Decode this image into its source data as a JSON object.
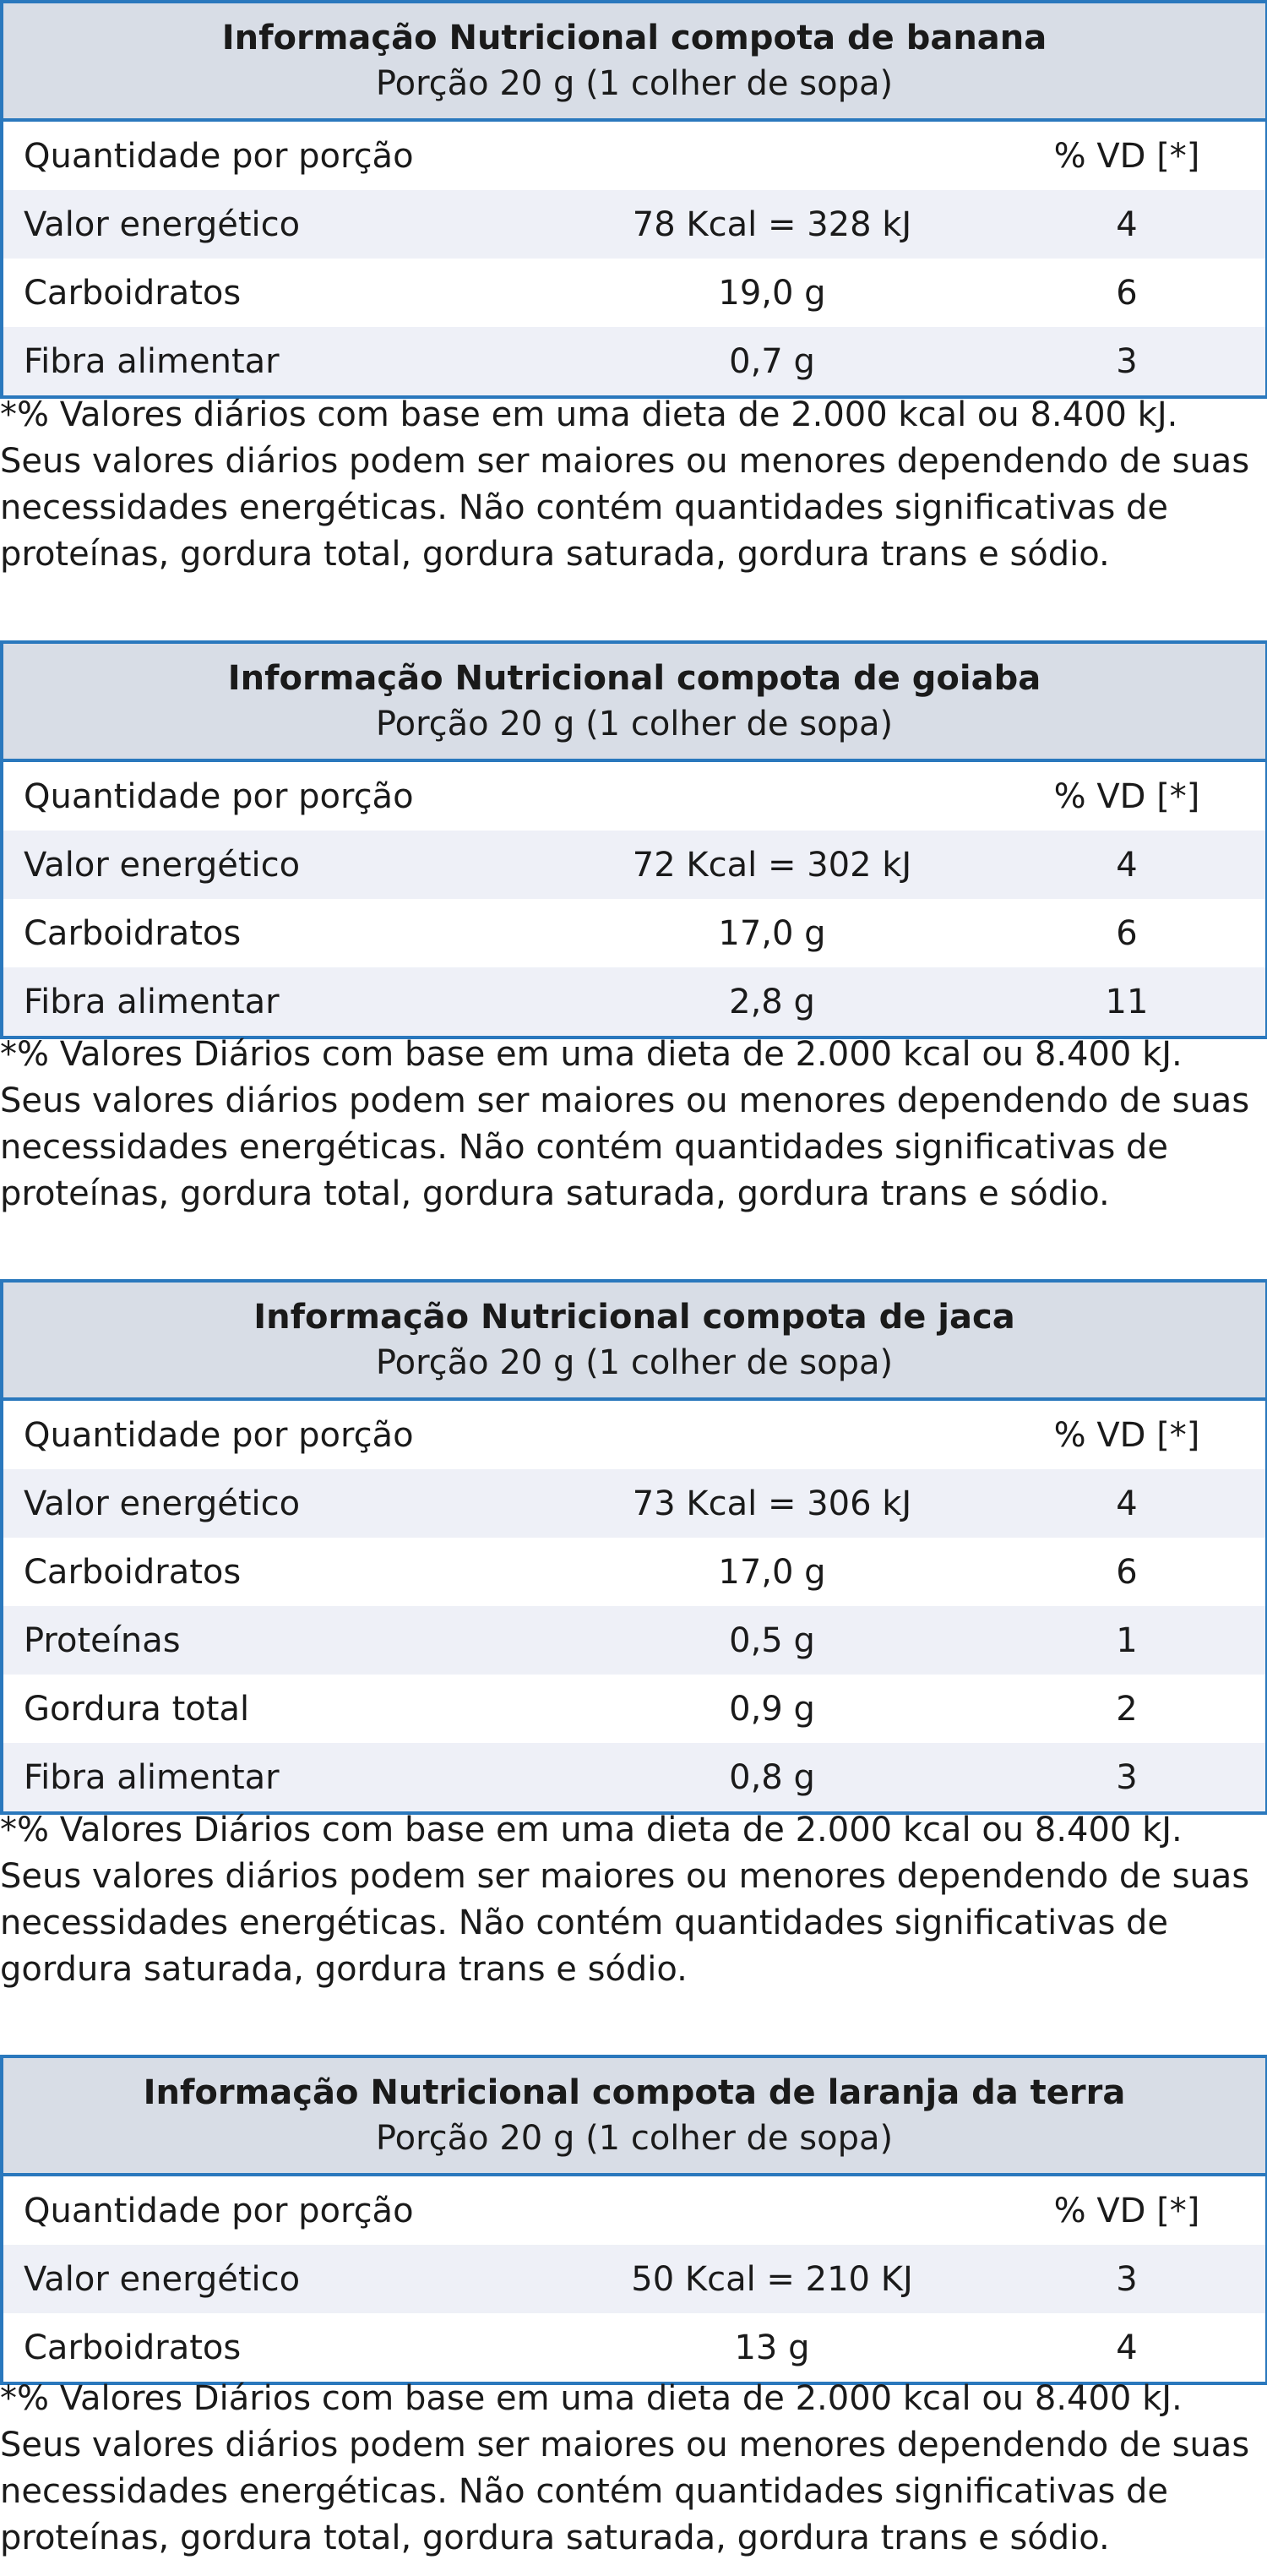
{
  "tables": [
    {
      "title": "Informação Nutricional compota de banana",
      "portion": "Porção 20 g (1 colher de sopa)",
      "header": {
        "name": "Quantidade por porção",
        "amount": "",
        "vd": "% VD [*]"
      },
      "rows": [
        {
          "name": "Valor energético",
          "amount": "78 Kcal = 328 kJ",
          "vd": "4"
        },
        {
          "name": "Carboidratos",
          "amount": "19,0 g",
          "vd": "6"
        },
        {
          "name": "Fibra alimentar",
          "amount": "0,7 g",
          "vd": "3"
        }
      ],
      "footnote": [
        "*% Valores diários com base em uma dieta de 2.000 kcal ou 8.400 kJ.",
        "Seus valores diários podem ser maiores ou menores dependendo de suas",
        "necessidades energéticas. Não contém quantidades significativas de",
        "proteínas, gordura total, gordura saturada, gordura trans e sódio."
      ]
    },
    {
      "title": "Informação Nutricional compota de goiaba",
      "portion": "Porção 20 g (1 colher de sopa)",
      "header": {
        "name": "Quantidade por porção",
        "amount": "",
        "vd": "% VD [*]"
      },
      "rows": [
        {
          "name": "Valor energético",
          "amount": "72 Kcal = 302 kJ",
          "vd": "4"
        },
        {
          "name": "Carboidratos",
          "amount": "17,0 g",
          "vd": "6"
        },
        {
          "name": "Fibra alimentar",
          "amount": "2,8 g",
          "vd": "11"
        }
      ],
      "footnote": [
        "*% Valores Diários com base em uma dieta de 2.000 kcal ou 8.400 kJ.",
        "Seus valores diários podem ser maiores ou menores dependendo de suas",
        "necessidades energéticas. Não contém quantidades significativas de",
        "proteínas, gordura total, gordura saturada, gordura trans e sódio."
      ]
    },
    {
      "title": "Informação Nutricional compota de jaca",
      "portion": "Porção 20 g (1 colher de sopa)",
      "header": {
        "name": "Quantidade por porção",
        "amount": "",
        "vd": "% VD [*]"
      },
      "rows": [
        {
          "name": "Valor energético",
          "amount": "73 Kcal = 306 kJ",
          "vd": "4"
        },
        {
          "name": "Carboidratos",
          "amount": "17,0 g",
          "vd": "6"
        },
        {
          "name": "Proteínas",
          "amount": "0,5 g",
          "vd": "1"
        },
        {
          "name": "Gordura total",
          "amount": "0,9 g",
          "vd": "2"
        },
        {
          "name": "Fibra alimentar",
          "amount": "0,8 g",
          "vd": "3"
        }
      ],
      "footnote": [
        "*% Valores Diários com base em uma dieta de 2.000 kcal ou 8.400 kJ.",
        "Seus valores diários podem ser maiores ou menores dependendo de suas",
        "necessidades energéticas. Não contém quantidades significativas de",
        "gordura saturada, gordura trans e sódio."
      ]
    },
    {
      "title": "Informação Nutricional compota de laranja da terra",
      "portion": "Porção 20 g (1 colher de sopa)",
      "header": {
        "name": "Quantidade por porção",
        "amount": "",
        "vd": "% VD [*]"
      },
      "rows": [
        {
          "name": "Valor energético",
          "amount": "50 Kcal = 210 KJ",
          "vd": "3"
        },
        {
          "name": "Carboidratos",
          "amount": "13 g",
          "vd": "4"
        }
      ],
      "footnote": [
        "*% Valores Diários com base em uma dieta de 2.000 kcal ou 8.400 kJ.",
        "Seus valores diários podem ser maiores ou menores dependendo de suas",
        "necessidades energéticas. Não contém quantidades significativas de",
        "proteínas, gordura total, gordura saturada, gordura trans e sódio."
      ]
    }
  ]
}
